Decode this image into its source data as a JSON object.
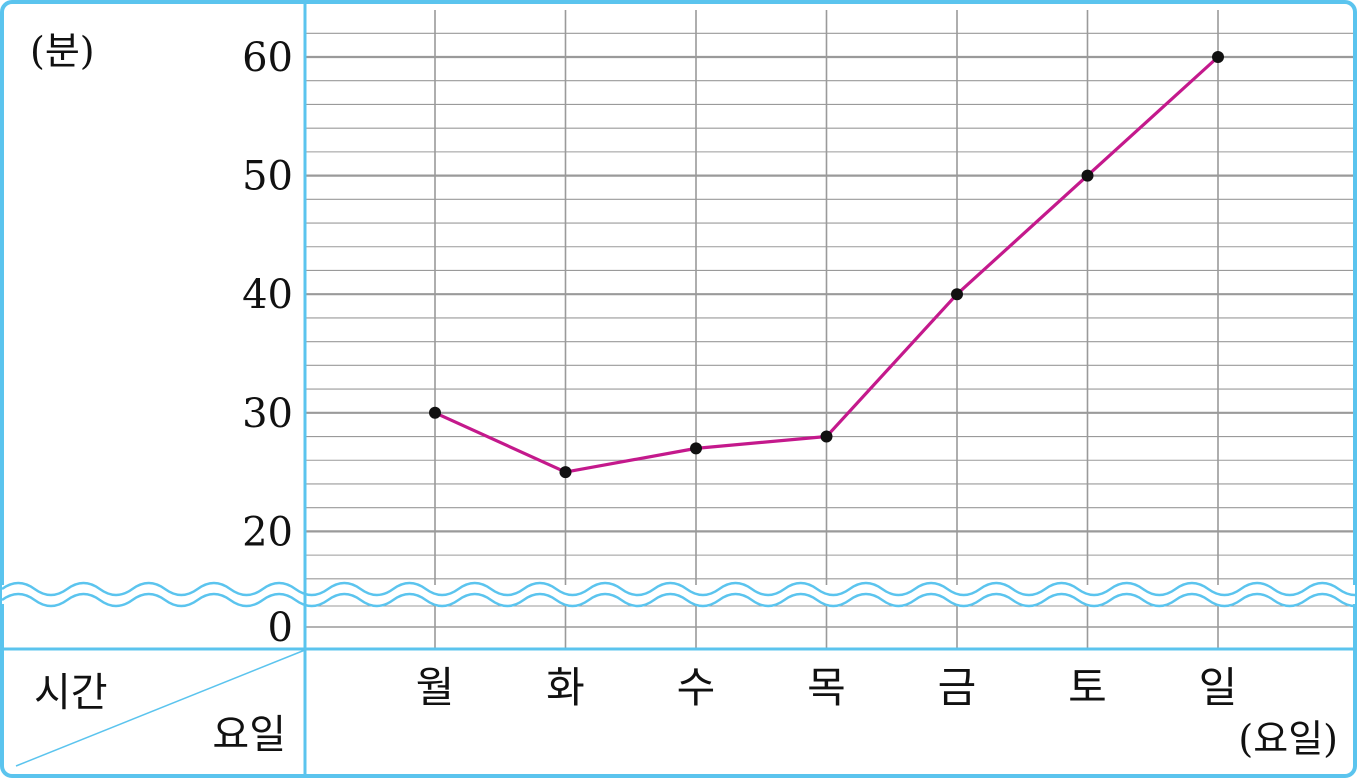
{
  "chart_data": {
    "type": "line",
    "categories": [
      "월",
      "화",
      "수",
      "목",
      "금",
      "토",
      "일"
    ],
    "values": [
      30,
      25,
      27,
      28,
      40,
      50,
      60
    ],
    "ylabel": "(분)",
    "xlabel": "(요일)",
    "yticks": [
      "60",
      "50",
      "40",
      "30",
      "20",
      "0"
    ],
    "ylim": [
      10,
      64
    ],
    "axis_break": true,
    "grid": true,
    "corner_labels": {
      "top": "시간",
      "bottom": "요일"
    },
    "colors": {
      "frame": "#5bc4ee",
      "grid": "#9a9a9a",
      "line": "#c4198c",
      "points": "#111111"
    }
  }
}
